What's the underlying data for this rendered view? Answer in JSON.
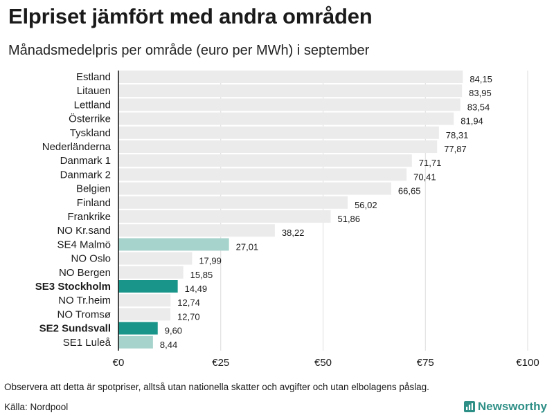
{
  "title": "Elpriset jämfört med andra områden",
  "subtitle": "Månadsmedelpris per område (euro per MWh) i september",
  "footnote": "Observera att detta är spotpriser, alltså utan nationella skatter och avgifter och utan elbolagens påslag.",
  "source": "Källa: Nordpool",
  "brand": "Newsworthy",
  "colors": {
    "default_bar": "#ebebeb",
    "light_highlight": "#a6d3cc",
    "dark_highlight": "#1a958a",
    "grid": "#dcdcdc",
    "axis": "#111111",
    "brand": "#2e8f86"
  },
  "chart_data": {
    "type": "bar",
    "orientation": "horizontal",
    "title": "Elpriset jämfört med andra områden",
    "subtitle": "Månadsmedelpris per område (euro per MWh) i september",
    "categories": [
      "Estland",
      "Litauen",
      "Lettland",
      "Österrike",
      "Tyskland",
      "Nederländerna",
      "Danmark 1",
      "Danmark 2",
      "Belgien",
      "Finland",
      "Frankrike",
      "NO Kr.sand",
      "SE4 Malmö",
      "NO Oslo",
      "NO Bergen",
      "SE3 Stockholm",
      "NO Tr.heim",
      "NO Tromsø",
      "SE2 Sundsvall",
      "SE1 Luleå"
    ],
    "values": [
      84.15,
      83.95,
      83.54,
      81.94,
      78.31,
      77.87,
      71.71,
      70.41,
      66.65,
      56.02,
      51.86,
      38.22,
      27.01,
      17.99,
      15.85,
      14.49,
      12.74,
      12.7,
      9.6,
      8.44
    ],
    "value_labels": [
      "84,15",
      "83,95",
      "83,54",
      "81,94",
      "78,31",
      "77,87",
      "71,71",
      "70,41",
      "66,65",
      "56,02",
      "51,86",
      "38,22",
      "27,01",
      "17,99",
      "15,85",
      "14,49",
      "12,74",
      "12,70",
      "9,60",
      "8,44"
    ],
    "highlight": [
      "none",
      "none",
      "none",
      "none",
      "none",
      "none",
      "none",
      "none",
      "none",
      "none",
      "none",
      "none",
      "light",
      "none",
      "none",
      "dark",
      "none",
      "none",
      "dark",
      "light"
    ],
    "bold": [
      false,
      false,
      false,
      false,
      false,
      false,
      false,
      false,
      false,
      false,
      false,
      false,
      false,
      false,
      false,
      true,
      false,
      false,
      true,
      false
    ],
    "xlim": [
      0,
      100
    ],
    "xticks": [
      0,
      25,
      50,
      75,
      100
    ],
    "xtick_labels": [
      "€0",
      "€25",
      "€50",
      "€75",
      "€100"
    ],
    "xlabel": "",
    "ylabel": "",
    "grid": true
  }
}
